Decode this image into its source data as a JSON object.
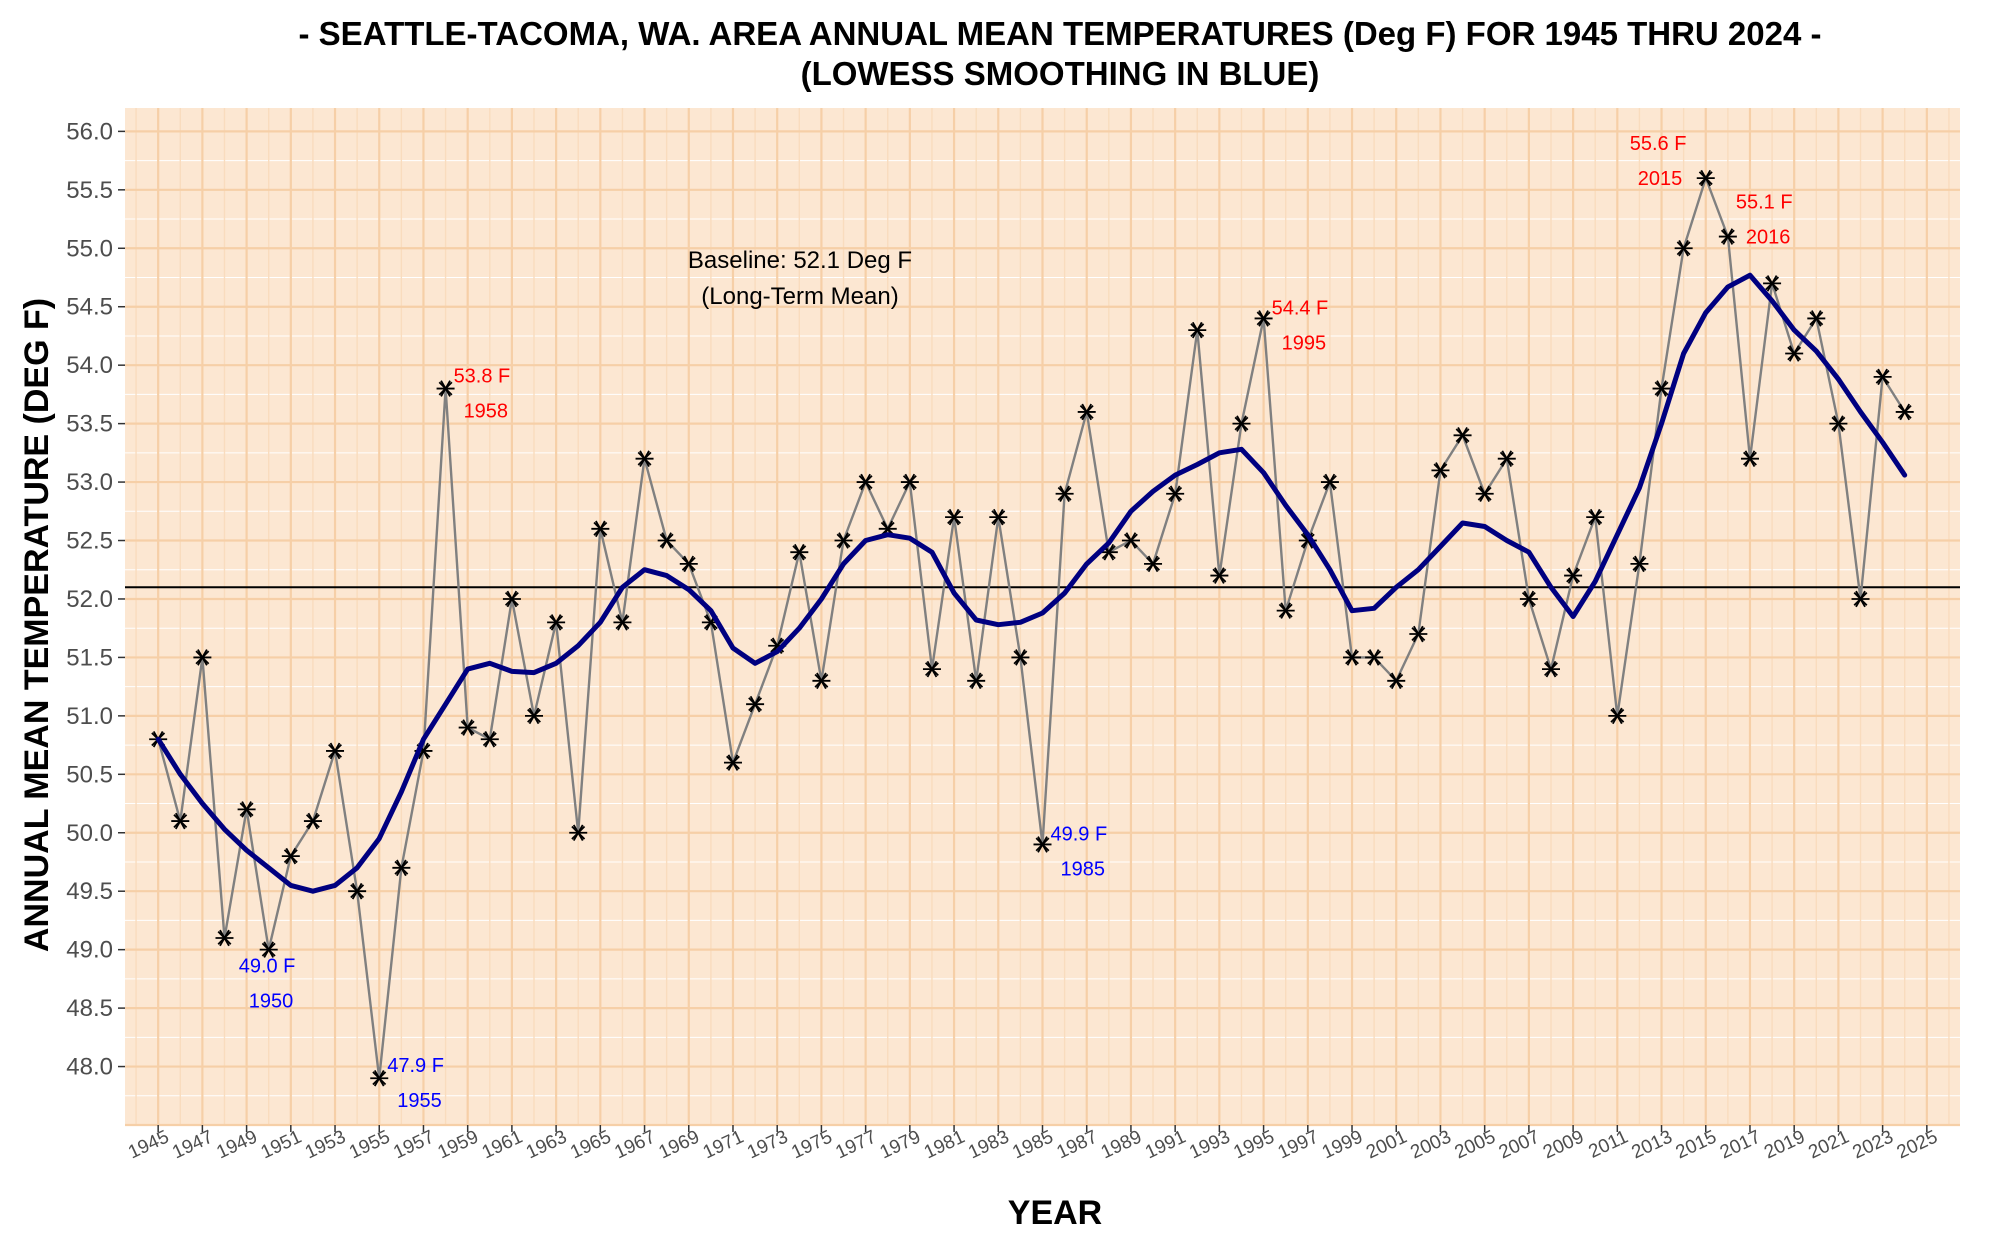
{
  "chart_data": {
    "type": "line",
    "title_line1": "- SEATTLE-TACOMA, WA. AREA ANNUAL MEAN TEMPERATURES (Deg F) FOR 1945 THRU 2024 -",
    "title_line2": "(LOWESS SMOOTHING IN BLUE)",
    "xlabel": "YEAR",
    "ylabel": "ANNUAL MEAN TEMPERATURE (DEG F)",
    "xlim": [
      1943.5,
      2026.5
    ],
    "ylim": [
      47.5,
      56.2
    ],
    "x_ticks": [
      "1945",
      "1947",
      "1949",
      "1951",
      "1953",
      "1955",
      "1957",
      "1959",
      "1961",
      "1963",
      "1965",
      "1967",
      "1969",
      "1971",
      "1973",
      "1975",
      "1977",
      "1979",
      "1981",
      "1983",
      "1985",
      "1987",
      "1989",
      "1991",
      "1993",
      "1995",
      "1997",
      "1999",
      "2001",
      "2003",
      "2005",
      "2007",
      "2009",
      "2011",
      "2013",
      "2015",
      "2017",
      "2019",
      "2021",
      "2023",
      "2025"
    ],
    "y_ticks": [
      "48.0",
      "48.5",
      "49.0",
      "49.5",
      "50.0",
      "50.5",
      "51.0",
      "51.5",
      "52.0",
      "52.5",
      "53.0",
      "53.5",
      "54.0",
      "54.5",
      "55.0",
      "55.5",
      "56.0"
    ],
    "grid": true,
    "background_color": "#fce7d2",
    "grid_color": "#f6cfa7",
    "line_color": "#808080",
    "marker_color": "#000000",
    "smooth_color": "#000080",
    "series": [
      {
        "name": "Annual Mean Temperature",
        "x": [
          1945,
          1946,
          1947,
          1948,
          1949,
          1950,
          1951,
          1952,
          1953,
          1954,
          1955,
          1956,
          1957,
          1958,
          1959,
          1960,
          1961,
          1962,
          1963,
          1964,
          1965,
          1966,
          1967,
          1968,
          1969,
          1970,
          1971,
          1972,
          1973,
          1974,
          1975,
          1976,
          1977,
          1978,
          1979,
          1980,
          1981,
          1982,
          1983,
          1984,
          1985,
          1986,
          1987,
          1988,
          1989,
          1990,
          1991,
          1992,
          1993,
          1994,
          1995,
          1996,
          1997,
          1998,
          1999,
          2000,
          2001,
          2002,
          2003,
          2004,
          2005,
          2006,
          2007,
          2008,
          2009,
          2010,
          2011,
          2012,
          2013,
          2014,
          2015,
          2016,
          2017,
          2018,
          2019,
          2020,
          2021,
          2022,
          2023,
          2024
        ],
        "values": [
          50.8,
          50.1,
          51.5,
          49.1,
          50.2,
          49.0,
          49.8,
          50.1,
          50.7,
          49.5,
          47.9,
          49.7,
          50.7,
          53.8,
          50.9,
          50.8,
          52.0,
          51.0,
          51.8,
          50.0,
          52.6,
          51.8,
          53.2,
          52.5,
          52.3,
          51.8,
          50.6,
          51.1,
          51.6,
          52.4,
          51.3,
          52.5,
          53.0,
          52.6,
          53.0,
          51.4,
          52.7,
          51.3,
          52.7,
          51.5,
          49.9,
          52.9,
          53.6,
          52.4,
          52.5,
          52.3,
          52.9,
          54.3,
          52.2,
          53.5,
          54.4,
          51.9,
          52.5,
          53.0,
          51.5,
          51.5,
          51.3,
          51.7,
          53.1,
          53.4,
          52.9,
          53.2,
          52.0,
          51.4,
          52.2,
          52.7,
          51.0,
          52.3,
          53.8,
          55.0,
          55.6,
          55.1,
          53.2,
          54.7,
          54.1,
          54.4,
          53.5,
          52.0,
          53.9,
          53.6
        ]
      },
      {
        "name": "LOWESS",
        "x": [
          1945,
          1946,
          1947,
          1948,
          1949,
          1950,
          1951,
          1952,
          1953,
          1954,
          1955,
          1956,
          1957,
          1958,
          1959,
          1960,
          1961,
          1962,
          1963,
          1964,
          1965,
          1966,
          1967,
          1968,
          1969,
          1970,
          1971,
          1972,
          1973,
          1974,
          1975,
          1976,
          1977,
          1978,
          1979,
          1980,
          1981,
          1982,
          1983,
          1984,
          1985,
          1986,
          1987,
          1988,
          1989,
          1990,
          1991,
          1992,
          1993,
          1994,
          1995,
          1996,
          1997,
          1998,
          1999,
          2000,
          2001,
          2002,
          2003,
          2004,
          2005,
          2006,
          2007,
          2008,
          2009,
          2010,
          2011,
          2012,
          2013,
          2014,
          2015,
          2016,
          2017,
          2018,
          2019,
          2020,
          2021,
          2022,
          2023,
          2024
        ],
        "values": [
          50.8,
          50.5,
          50.25,
          50.03,
          49.85,
          49.7,
          49.55,
          49.5,
          49.55,
          49.7,
          49.95,
          50.35,
          50.8,
          51.1,
          51.4,
          51.45,
          51.38,
          51.37,
          51.45,
          51.6,
          51.8,
          52.1,
          52.25,
          52.2,
          52.08,
          51.9,
          51.58,
          51.45,
          51.55,
          51.75,
          52.0,
          52.3,
          52.5,
          52.55,
          52.52,
          52.4,
          52.05,
          51.82,
          51.78,
          51.8,
          51.88,
          52.05,
          52.3,
          52.48,
          52.75,
          52.92,
          53.06,
          53.15,
          53.25,
          53.28,
          53.08,
          52.8,
          52.55,
          52.25,
          51.9,
          51.92,
          52.1,
          52.25,
          52.45,
          52.65,
          52.62,
          52.5,
          52.4,
          52.1,
          51.85,
          52.15,
          52.55,
          52.95,
          53.5,
          54.1,
          54.45,
          54.67,
          54.77,
          54.55,
          54.3,
          54.12,
          53.88,
          53.6,
          53.34,
          53.06
        ]
      }
    ],
    "baseline": {
      "value": 52.1,
      "label_line1": "Baseline: 52.1 Deg F",
      "label_line2": "(Long-Term Mean)"
    },
    "annotations": [
      {
        "x": 1950,
        "y": 49.0,
        "value": "49.0 F",
        "year": "1950",
        "color": "#0000ff"
      },
      {
        "x": 1955,
        "y": 47.9,
        "value": "47.9 F",
        "year": "1955",
        "color": "#0000ff"
      },
      {
        "x": 1958,
        "y": 53.8,
        "value": "53.8 F",
        "year": "1958",
        "color": "#ff0000"
      },
      {
        "x": 1985,
        "y": 49.9,
        "value": "49.9 F",
        "year": "1985",
        "color": "#0000ff"
      },
      {
        "x": 1995,
        "y": 54.4,
        "value": "54.4 F",
        "year": "1995",
        "color": "#ff0000"
      },
      {
        "x": 2015,
        "y": 55.6,
        "value": "55.6 F",
        "year": "2015",
        "color": "#ff0000"
      },
      {
        "x": 2016,
        "y": 55.1,
        "value": "55.1 F",
        "year": "2016",
        "color": "#ff0000"
      }
    ]
  }
}
